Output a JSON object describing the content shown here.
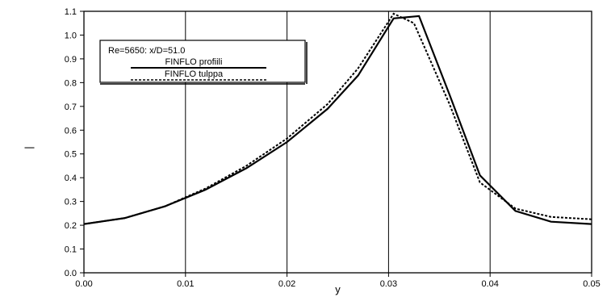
{
  "chart_data": {
    "type": "line",
    "xlabel": "y",
    "ylabel": "|",
    "xlim": [
      0.0,
      0.05
    ],
    "ylim": [
      0.0,
      1.1
    ],
    "xticks": [
      "0.00",
      "0.01",
      "0.02",
      "0.03",
      "0.04",
      "0.05"
    ],
    "yticks": [
      "0.0",
      "0.1",
      "0.2",
      "0.3",
      "0.4",
      "0.5",
      "0.6",
      "0.7",
      "0.8",
      "0.9",
      "1.0",
      "1.1"
    ],
    "grid": "major vertical",
    "legend_position": "top-left",
    "legend_title": "Re=5650: x/D=51.0",
    "series": [
      {
        "name": "FINFLO profiili",
        "style": "solid",
        "x": [
          0.0,
          0.004,
          0.008,
          0.012,
          0.016,
          0.02,
          0.024,
          0.027,
          0.0305,
          0.033,
          0.036,
          0.039,
          0.0425,
          0.046,
          0.05
        ],
        "y": [
          0.205,
          0.23,
          0.28,
          0.35,
          0.44,
          0.55,
          0.69,
          0.83,
          1.07,
          1.08,
          0.75,
          0.41,
          0.26,
          0.215,
          0.205
        ]
      },
      {
        "name": "FINFLO tulppa",
        "style": "dashed",
        "x": [
          0.0,
          0.004,
          0.008,
          0.012,
          0.016,
          0.02,
          0.024,
          0.027,
          0.0305,
          0.0325,
          0.036,
          0.039,
          0.0425,
          0.046,
          0.05
        ],
        "y": [
          0.205,
          0.23,
          0.28,
          0.355,
          0.45,
          0.565,
          0.71,
          0.86,
          1.09,
          1.05,
          0.71,
          0.38,
          0.27,
          0.235,
          0.225
        ]
      }
    ]
  }
}
